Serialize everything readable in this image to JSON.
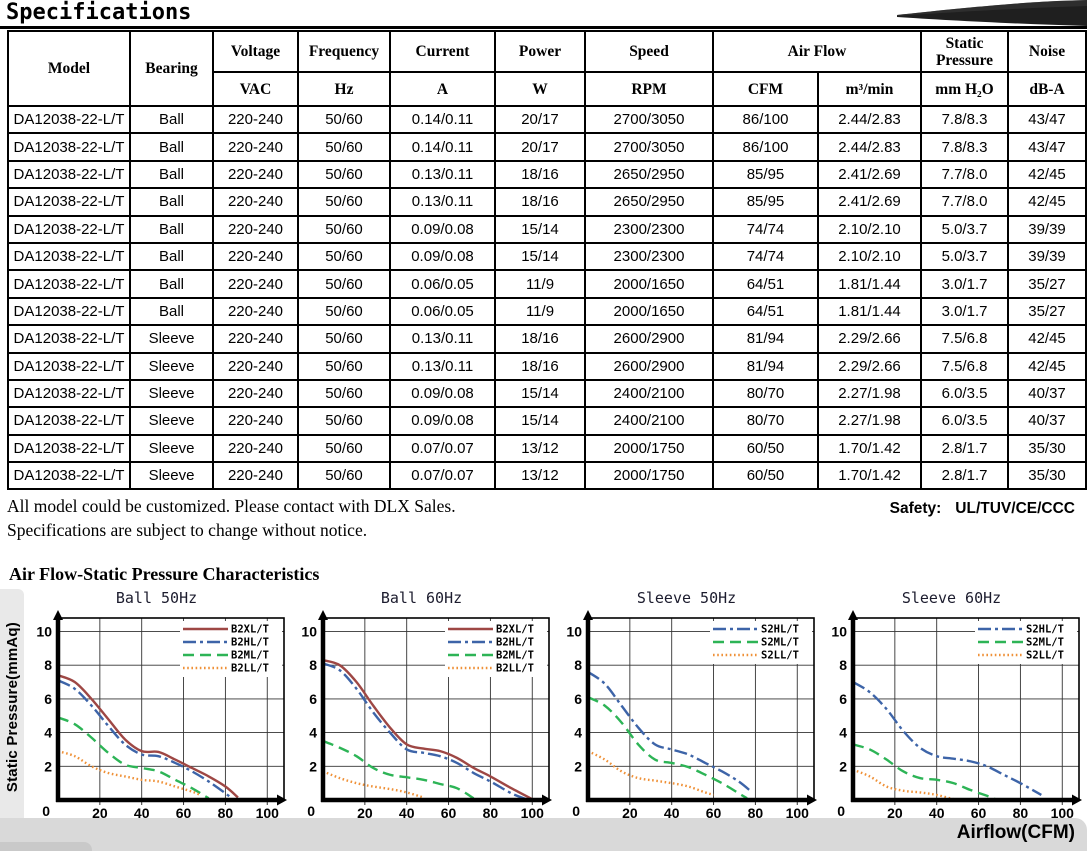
{
  "page": {
    "title": "Specifications",
    "notes": [
      "All model could be customized. Please contact with DLX Sales.",
      "Specifications are subject to change without notice."
    ],
    "safety_label": "Safety:",
    "safety_value": "UL/TUV/CE/CCC",
    "section2_title": "Air Flow-Static Pressure Characteristics",
    "y_axis_label": "Static Pressure(mmAq)",
    "x_axis_label": "Airflow(CFM)"
  },
  "table": {
    "header": {
      "model": "Model",
      "bearing": "Bearing",
      "voltage": "Voltage",
      "frequency": "Frequency",
      "current": "Current",
      "power": "Power",
      "speed": "Speed",
      "air_flow": "Air Flow",
      "static_pressure": "Static Pressure",
      "noise": "Noise"
    },
    "units": {
      "voltage": "VAC",
      "frequency": "Hz",
      "current": "A",
      "power": "W",
      "speed": "RPM",
      "cfm": "CFM",
      "m3_min": "m³/min",
      "static_pressure": "mm H₂O",
      "noise": "dB-A"
    },
    "column_keys": [
      "model",
      "bearing",
      "voltage",
      "frequency",
      "current",
      "power",
      "speed",
      "cfm",
      "m3min",
      "static-pressure",
      "noise"
    ],
    "rows": [
      [
        "DA12038-22-L/T",
        "Ball",
        "220-240",
        "50/60",
        "0.14/0.11",
        "20/17",
        "2700/3050",
        "86/100",
        "2.44/2.83",
        "7.8/8.3",
        "43/47"
      ],
      [
        "DA12038-22-L/T",
        "Ball",
        "220-240",
        "50/60",
        "0.14/0.11",
        "20/17",
        "2700/3050",
        "86/100",
        "2.44/2.83",
        "7.8/8.3",
        "43/47"
      ],
      [
        "DA12038-22-L/T",
        "Ball",
        "220-240",
        "50/60",
        "0.13/0.11",
        "18/16",
        "2650/2950",
        "85/95",
        "2.41/2.69",
        "7.7/8.0",
        "42/45"
      ],
      [
        "DA12038-22-L/T",
        "Ball",
        "220-240",
        "50/60",
        "0.13/0.11",
        "18/16",
        "2650/2950",
        "85/95",
        "2.41/2.69",
        "7.7/8.0",
        "42/45"
      ],
      [
        "DA12038-22-L/T",
        "Ball",
        "220-240",
        "50/60",
        "0.09/0.08",
        "15/14",
        "2300/2300",
        "74/74",
        "2.10/2.10",
        "5.0/3.7",
        "39/39"
      ],
      [
        "DA12038-22-L/T",
        "Ball",
        "220-240",
        "50/60",
        "0.09/0.08",
        "15/14",
        "2300/2300",
        "74/74",
        "2.10/2.10",
        "5.0/3.7",
        "39/39"
      ],
      [
        "DA12038-22-L/T",
        "Ball",
        "220-240",
        "50/60",
        "0.06/0.05",
        "11/9",
        "2000/1650",
        "64/51",
        "1.81/1.44",
        "3.0/1.7",
        "35/27"
      ],
      [
        "DA12038-22-L/T",
        "Ball",
        "220-240",
        "50/60",
        "0.06/0.05",
        "11/9",
        "2000/1650",
        "64/51",
        "1.81/1.44",
        "3.0/1.7",
        "35/27"
      ],
      [
        "DA12038-22-L/T",
        "Sleeve",
        "220-240",
        "50/60",
        "0.13/0.11",
        "18/16",
        "2600/2900",
        "81/94",
        "2.29/2.66",
        "7.5/6.8",
        "42/45"
      ],
      [
        "DA12038-22-L/T",
        "Sleeve",
        "220-240",
        "50/60",
        "0.13/0.11",
        "18/16",
        "2600/2900",
        "81/94",
        "2.29/2.66",
        "7.5/6.8",
        "42/45"
      ],
      [
        "DA12038-22-L/T",
        "Sleeve",
        "220-240",
        "50/60",
        "0.09/0.08",
        "15/14",
        "2400/2100",
        "80/70",
        "2.27/1.98",
        "6.0/3.5",
        "40/37"
      ],
      [
        "DA12038-22-L/T",
        "Sleeve",
        "220-240",
        "50/60",
        "0.09/0.08",
        "15/14",
        "2400/2100",
        "80/70",
        "2.27/1.98",
        "6.0/3.5",
        "40/37"
      ],
      [
        "DA12038-22-L/T",
        "Sleeve",
        "220-240",
        "50/60",
        "0.07/0.07",
        "13/12",
        "2000/1750",
        "60/50",
        "1.70/1.42",
        "2.8/1.7",
        "35/30"
      ],
      [
        "DA12038-22-L/T",
        "Sleeve",
        "220-240",
        "50/60",
        "0.07/0.07",
        "13/12",
        "2000/1750",
        "60/50",
        "1.70/1.42",
        "2.8/1.7",
        "35/30"
      ]
    ]
  },
  "colors": {
    "b2xl": "#9e4744",
    "b2hl": "#3d64a8",
    "b2ml": "#2db456",
    "b2ll": "#ef9138",
    "gray_bar": "#d9d9d9"
  },
  "chart_data": [
    {
      "type": "line",
      "title": "Ball 50Hz",
      "xlabel": "Airflow(CFM)",
      "ylabel": "Static Pressure(mmAq)",
      "xlim": [
        0,
        100
      ],
      "ylim": [
        0,
        10
      ],
      "xticks": [
        0,
        20,
        40,
        60,
        80,
        100
      ],
      "yticks": [
        0,
        2,
        4,
        6,
        8,
        10
      ],
      "grid": true,
      "legend_position": "top-right",
      "series": [
        {
          "name": "B2XL/T",
          "color": "#9e4744",
          "style": "solid",
          "points": [
            [
              0,
              7.4
            ],
            [
              8,
              7.0
            ],
            [
              16,
              6.0
            ],
            [
              24,
              4.8
            ],
            [
              32,
              3.6
            ],
            [
              40,
              2.9
            ],
            [
              48,
              2.85
            ],
            [
              56,
              2.4
            ],
            [
              64,
              1.9
            ],
            [
              72,
              1.4
            ],
            [
              80,
              0.8
            ],
            [
              86,
              0.15
            ]
          ]
        },
        {
          "name": "B2HL/T",
          "color": "#3d64a8",
          "style": "dashdot",
          "points": [
            [
              0,
              7.1
            ],
            [
              8,
              6.6
            ],
            [
              16,
              5.6
            ],
            [
              24,
              4.4
            ],
            [
              32,
              3.3
            ],
            [
              40,
              2.7
            ],
            [
              48,
              2.6
            ],
            [
              56,
              2.2
            ],
            [
              64,
              1.7
            ],
            [
              72,
              1.1
            ],
            [
              80,
              0.4
            ],
            [
              83,
              0.1
            ]
          ]
        },
        {
          "name": "B2ML/T",
          "color": "#2db456",
          "style": "dashed",
          "points": [
            [
              0,
              4.9
            ],
            [
              8,
              4.5
            ],
            [
              16,
              3.7
            ],
            [
              24,
              2.8
            ],
            [
              32,
              2.1
            ],
            [
              40,
              1.9
            ],
            [
              48,
              1.7
            ],
            [
              56,
              1.2
            ],
            [
              64,
              0.7
            ],
            [
              72,
              0.1
            ]
          ]
        },
        {
          "name": "B2LL/T",
          "color": "#ef9138",
          "style": "dotted",
          "points": [
            [
              0,
              2.9
            ],
            [
              8,
              2.6
            ],
            [
              16,
              2.0
            ],
            [
              24,
              1.6
            ],
            [
              32,
              1.4
            ],
            [
              40,
              1.2
            ],
            [
              48,
              1.1
            ],
            [
              56,
              0.8
            ],
            [
              64,
              0.5
            ],
            [
              68,
              0.3
            ]
          ]
        }
      ]
    },
    {
      "type": "line",
      "title": "Ball 60Hz",
      "xlabel": "Airflow(CFM)",
      "ylabel": "Static Pressure(mmAq)",
      "xlim": [
        0,
        100
      ],
      "ylim": [
        0,
        10
      ],
      "xticks": [
        0,
        20,
        40,
        60,
        80,
        100
      ],
      "yticks": [
        0,
        2,
        4,
        6,
        8,
        10
      ],
      "grid": true,
      "legend_position": "top-right",
      "series": [
        {
          "name": "B2XL/T",
          "color": "#9e4744",
          "style": "solid",
          "points": [
            [
              0,
              8.3
            ],
            [
              8,
              8.0
            ],
            [
              16,
              7.0
            ],
            [
              24,
              5.6
            ],
            [
              32,
              4.3
            ],
            [
              40,
              3.3
            ],
            [
              48,
              3.05
            ],
            [
              56,
              2.9
            ],
            [
              64,
              2.5
            ],
            [
              72,
              1.9
            ],
            [
              80,
              1.4
            ],
            [
              90,
              0.7
            ],
            [
              100,
              0.05
            ]
          ]
        },
        {
          "name": "B2HL/T",
          "color": "#3d64a8",
          "style": "dashdot",
          "points": [
            [
              0,
              8.1
            ],
            [
              8,
              7.7
            ],
            [
              16,
              6.6
            ],
            [
              24,
              5.2
            ],
            [
              32,
              4.0
            ],
            [
              40,
              3.0
            ],
            [
              48,
              2.8
            ],
            [
              56,
              2.6
            ],
            [
              64,
              2.2
            ],
            [
              72,
              1.6
            ],
            [
              80,
              1.1
            ],
            [
              90,
              0.4
            ],
            [
              97,
              0.05
            ]
          ]
        },
        {
          "name": "B2ML/T",
          "color": "#2db456",
          "style": "dashed",
          "points": [
            [
              0,
              3.5
            ],
            [
              8,
              3.1
            ],
            [
              16,
              2.6
            ],
            [
              24,
              1.9
            ],
            [
              32,
              1.5
            ],
            [
              40,
              1.35
            ],
            [
              48,
              1.2
            ],
            [
              56,
              0.95
            ],
            [
              64,
              0.7
            ],
            [
              72,
              0.1
            ]
          ]
        },
        {
          "name": "B2LL/T",
          "color": "#ef9138",
          "style": "dotted",
          "points": [
            [
              0,
              1.7
            ],
            [
              8,
              1.3
            ],
            [
              16,
              1.0
            ],
            [
              24,
              0.8
            ],
            [
              32,
              0.65
            ],
            [
              40,
              0.45
            ],
            [
              48,
              0.15
            ]
          ]
        }
      ]
    },
    {
      "type": "line",
      "title": "Sleeve 50Hz",
      "xlabel": "Airflow(CFM)",
      "ylabel": "Static Pressure(mmAq)",
      "xlim": [
        0,
        100
      ],
      "ylim": [
        0,
        10
      ],
      "xticks": [
        0,
        20,
        40,
        60,
        80,
        100
      ],
      "yticks": [
        0,
        2,
        4,
        6,
        8,
        10
      ],
      "grid": true,
      "legend_position": "top-right",
      "series": [
        {
          "name": "S2HL/T",
          "color": "#3d64a8",
          "style": "dashdot",
          "points": [
            [
              0,
              7.6
            ],
            [
              8,
              6.9
            ],
            [
              16,
              5.6
            ],
            [
              24,
              4.3
            ],
            [
              32,
              3.3
            ],
            [
              40,
              3.0
            ],
            [
              48,
              2.7
            ],
            [
              56,
              2.2
            ],
            [
              64,
              1.7
            ],
            [
              72,
              1.1
            ],
            [
              78,
              0.5
            ]
          ]
        },
        {
          "name": "S2ML/T",
          "color": "#2db456",
          "style": "dashed",
          "points": [
            [
              0,
              6.1
            ],
            [
              8,
              5.6
            ],
            [
              16,
              4.6
            ],
            [
              24,
              3.3
            ],
            [
              32,
              2.4
            ],
            [
              40,
              2.2
            ],
            [
              48,
              1.95
            ],
            [
              56,
              1.5
            ],
            [
              64,
              1.0
            ],
            [
              72,
              0.4
            ],
            [
              76,
              0.1
            ]
          ]
        },
        {
          "name": "S2LL/T",
          "color": "#ef9138",
          "style": "dotted",
          "points": [
            [
              0,
              2.9
            ],
            [
              8,
              2.4
            ],
            [
              16,
              1.7
            ],
            [
              24,
              1.3
            ],
            [
              32,
              1.15
            ],
            [
              40,
              1.0
            ],
            [
              48,
              0.8
            ],
            [
              56,
              0.45
            ],
            [
              60,
              0.3
            ]
          ]
        }
      ]
    },
    {
      "type": "line",
      "title": "Sleeve 60Hz",
      "xlabel": "Airflow(CFM)",
      "ylabel": "Static Pressure(mmAq)",
      "xlim": [
        0,
        100
      ],
      "ylim": [
        0,
        10
      ],
      "xticks": [
        0,
        20,
        40,
        60,
        80,
        100
      ],
      "yticks": [
        0,
        2,
        4,
        6,
        8,
        10
      ],
      "grid": true,
      "legend_position": "top-right",
      "series": [
        {
          "name": "S2HL/T",
          "color": "#3d64a8",
          "style": "dashdot",
          "points": [
            [
              0,
              7.0
            ],
            [
              8,
              6.4
            ],
            [
              16,
              5.4
            ],
            [
              24,
              4.1
            ],
            [
              32,
              3.1
            ],
            [
              40,
              2.6
            ],
            [
              48,
              2.45
            ],
            [
              56,
              2.3
            ],
            [
              64,
              2.0
            ],
            [
              72,
              1.5
            ],
            [
              80,
              1.0
            ],
            [
              90,
              0.3
            ]
          ]
        },
        {
          "name": "S2ML/T",
          "color": "#2db456",
          "style": "dashed",
          "points": [
            [
              0,
              3.3
            ],
            [
              8,
              3.0
            ],
            [
              16,
              2.4
            ],
            [
              24,
              1.7
            ],
            [
              32,
              1.3
            ],
            [
              40,
              1.2
            ],
            [
              48,
              1.0
            ],
            [
              56,
              0.6
            ],
            [
              64,
              0.25
            ],
            [
              68,
              0.05
            ]
          ]
        },
        {
          "name": "S2LL/T",
          "color": "#ef9138",
          "style": "dotted",
          "points": [
            [
              0,
              1.8
            ],
            [
              8,
              1.4
            ],
            [
              16,
              0.8
            ],
            [
              24,
              0.55
            ],
            [
              32,
              0.45
            ],
            [
              40,
              0.3
            ],
            [
              48,
              0.05
            ]
          ]
        }
      ]
    }
  ]
}
